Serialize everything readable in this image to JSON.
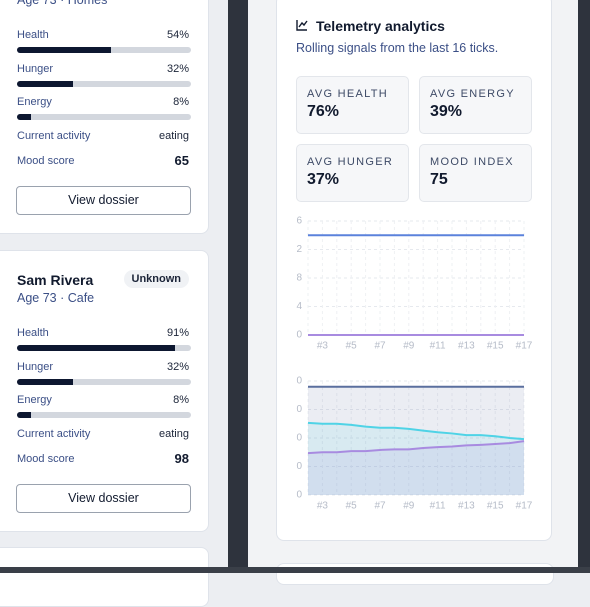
{
  "residents": [
    {
      "subtitle": "Age 73 · Homes",
      "meters": [
        {
          "label": "Health",
          "value": 54,
          "value_label": "54%"
        },
        {
          "label": "Hunger",
          "value": 32,
          "value_label": "32%"
        },
        {
          "label": "Energy",
          "value": 8,
          "value_label": "8%"
        }
      ],
      "activity_label": "Current activity",
      "activity": "eating",
      "mood_label": "Mood score",
      "mood": 65,
      "button": "View dossier"
    },
    {
      "name": "Sam Rivera",
      "badge": "Unknown",
      "subtitle": "Age 73 · Cafe",
      "meters": [
        {
          "label": "Health",
          "value": 91,
          "value_label": "91%"
        },
        {
          "label": "Hunger",
          "value": 32,
          "value_label": "32%"
        },
        {
          "label": "Energy",
          "value": 8,
          "value_label": "8%"
        }
      ],
      "activity_label": "Current activity",
      "activity": "eating",
      "mood_label": "Mood score",
      "mood": 98,
      "button": "View dossier"
    }
  ],
  "panel": {
    "title": "Telemetry analytics",
    "subtitle": "Rolling signals from the last 16 ticks.",
    "stats": [
      {
        "label": "AVG HEALTH",
        "value": "76%"
      },
      {
        "label": "AVG ENERGY",
        "value": "39%"
      },
      {
        "label": "AVG HUNGER",
        "value": "37%"
      },
      {
        "label": "MOOD INDEX",
        "value": "75"
      }
    ]
  },
  "chart_data": [
    {
      "type": "line",
      "grid": true,
      "categories": [
        null,
        "#3",
        null,
        "#5",
        null,
        "#7",
        null,
        "#9",
        null,
        "#11",
        null,
        "#13",
        null,
        "#15",
        null,
        "#17"
      ],
      "ylim": [
        0,
        16
      ],
      "yticks": [
        {
          "value": 16,
          "label": "6"
        },
        {
          "value": 12,
          "label": "2"
        },
        8,
        4,
        0
      ],
      "series": [
        {
          "color": "#5b82dc",
          "values": [
            14,
            14,
            14,
            14,
            14,
            14,
            14,
            14,
            14,
            14,
            14,
            14,
            14,
            14,
            14,
            14
          ]
        },
        {
          "color": "#a88be0",
          "values": [
            0,
            0,
            0,
            0,
            0,
            0,
            0,
            0,
            0,
            0,
            0,
            0,
            0,
            0,
            0,
            0
          ]
        }
      ]
    },
    {
      "type": "area",
      "grid": true,
      "categories": [
        null,
        "#3",
        null,
        "#5",
        null,
        "#7",
        null,
        "#9",
        null,
        "#11",
        null,
        "#13",
        null,
        "#15",
        null,
        "#17"
      ],
      "ylim": [
        0,
        40
      ],
      "yticks": [
        {
          "value": 40,
          "label": "0"
        },
        {
          "value": 30,
          "label": "0"
        },
        {
          "value": 20,
          "label": "0"
        },
        {
          "value": 10,
          "label": "0"
        },
        0
      ],
      "series": [
        {
          "color": "#5a6f9e",
          "values": [
            38,
            38,
            38,
            38,
            38,
            38,
            38,
            38,
            38,
            38,
            38,
            38,
            38,
            38,
            38,
            38
          ]
        },
        {
          "color": "#4fd3e6",
          "values": [
            25.3,
            25,
            25,
            24.6,
            24,
            23.6,
            23.6,
            23.2,
            22.6,
            22,
            21.6,
            21,
            21,
            20.6,
            20,
            19.6
          ]
        },
        {
          "color": "#a88be0",
          "values": [
            14.7,
            15,
            15,
            15.4,
            15.4,
            15.8,
            16,
            16,
            16.5,
            16.8,
            17,
            17.4,
            17.6,
            17.9,
            18.2,
            18.9
          ]
        }
      ]
    }
  ]
}
